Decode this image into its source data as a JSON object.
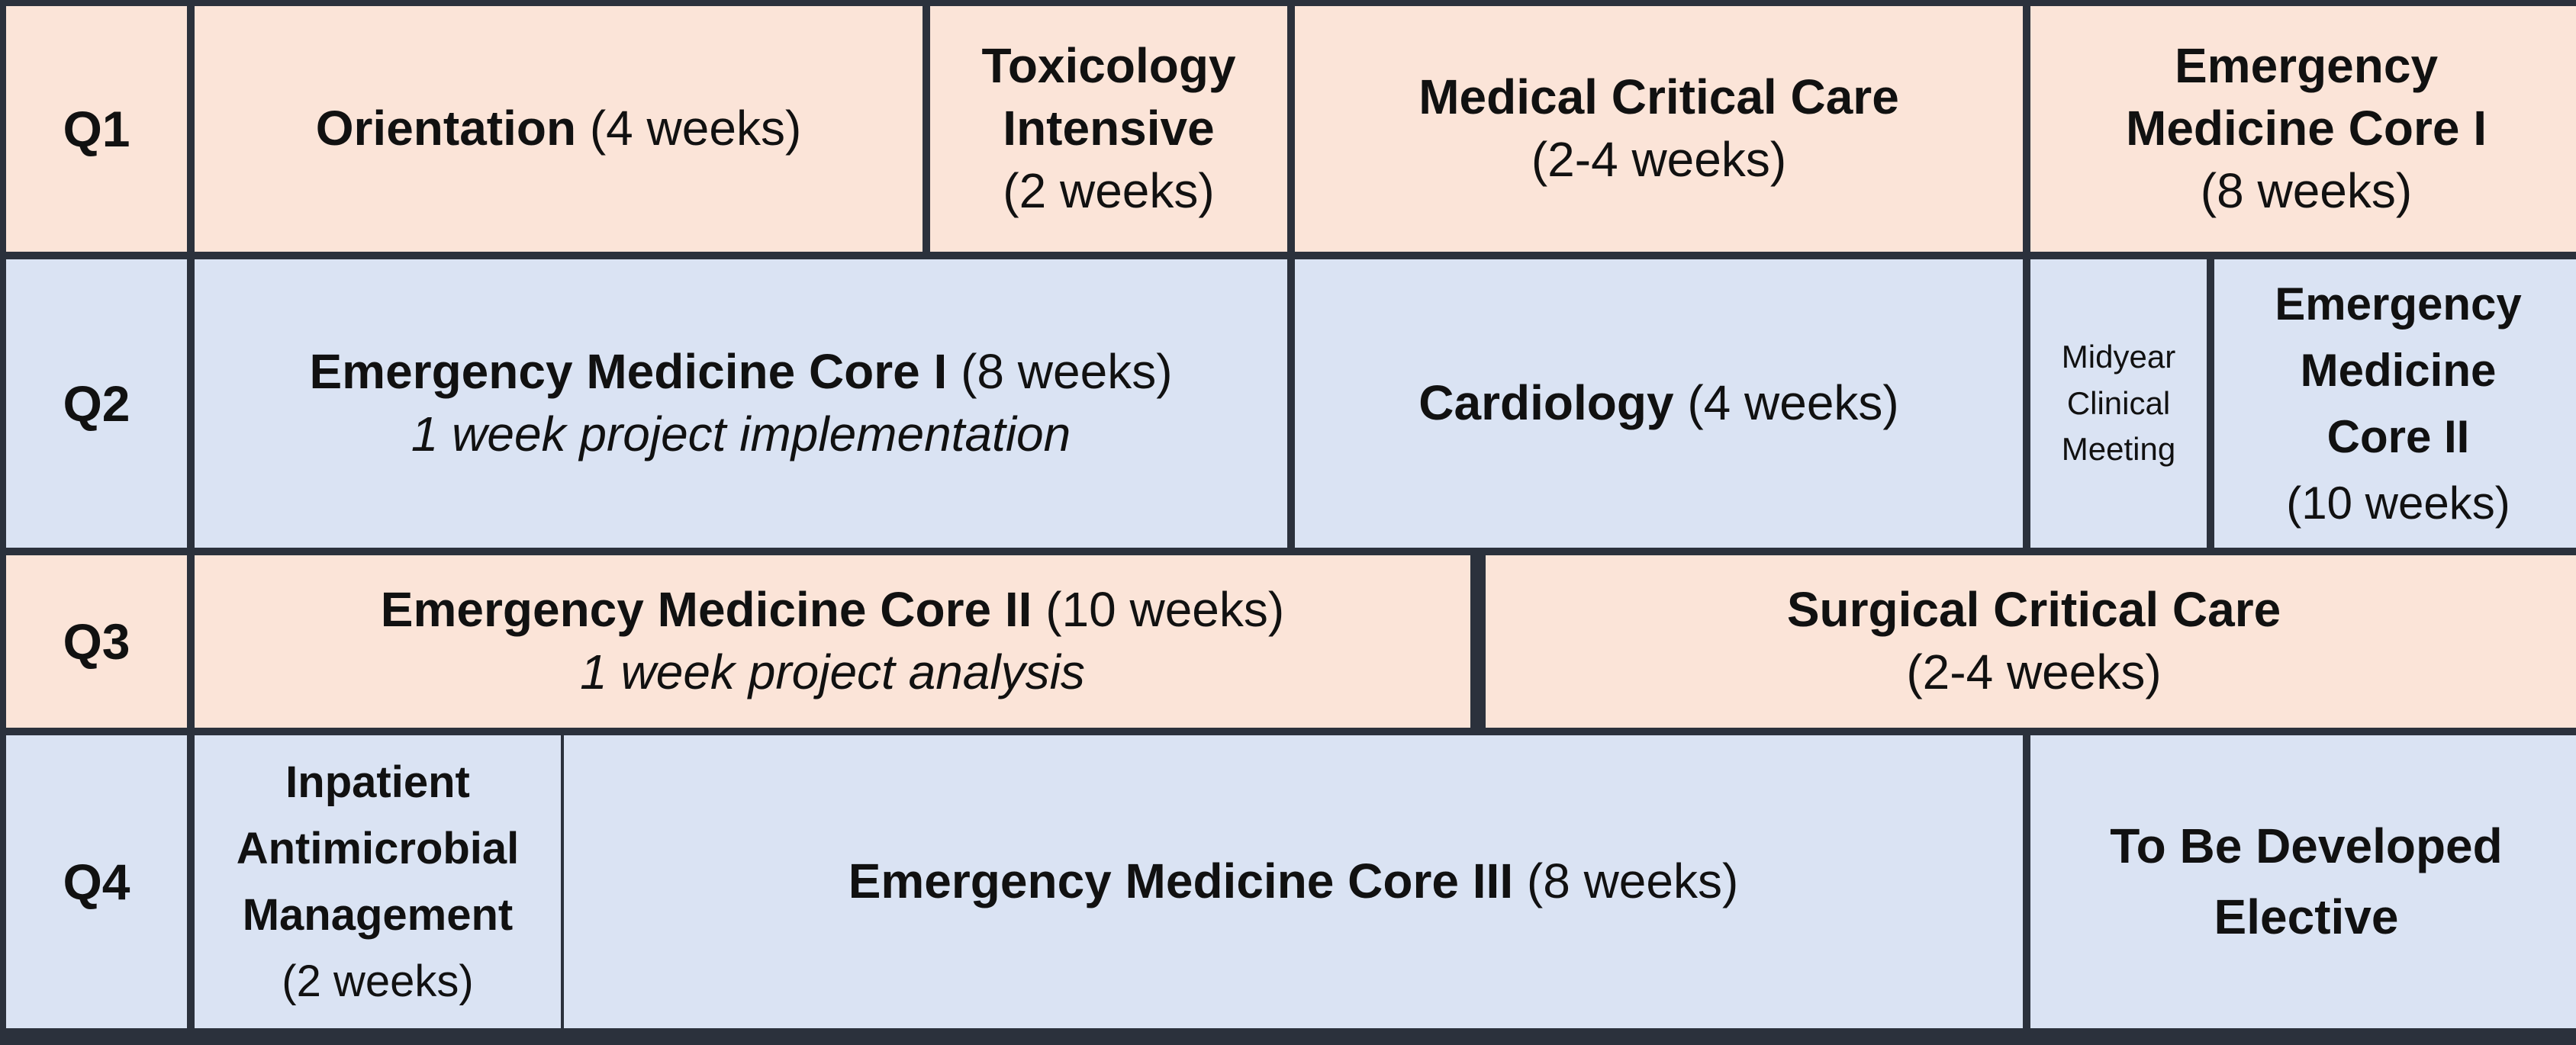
{
  "rows": [
    {
      "quarter": "Q1",
      "cells": [
        {
          "title": "Orientation",
          "detail": "(4 weeks)"
        },
        {
          "title": "Toxicology Intensive",
          "detail": "(2 weeks)"
        },
        {
          "title": "Medical Critical Care",
          "detail": "(2-4 weeks)"
        },
        {
          "title": "Emergency Medicine Core I",
          "detail": "(8 weeks)"
        }
      ]
    },
    {
      "quarter": "Q2",
      "cells": [
        {
          "title": "Emergency Medicine Core I",
          "detail": "(8 weeks)",
          "note": "1 week project implementation"
        },
        {
          "title": "Cardiology",
          "detail": "(4 weeks)"
        },
        {
          "title": "Midyear Clinical Meeting"
        },
        {
          "title": "Emergency Medicine Core II",
          "detail": "(10 weeks)"
        }
      ]
    },
    {
      "quarter": "Q3",
      "cells": [
        {
          "title": "Emergency Medicine Core II",
          "detail": "(10 weeks)",
          "note": "1 week project analysis"
        },
        {
          "title": "Surgical Critical Care",
          "detail": "(2-4 weeks)"
        }
      ]
    },
    {
      "quarter": "Q4",
      "cells": [
        {
          "title": "Inpatient Antimicrobial Management",
          "detail": "(2 weeks)"
        },
        {
          "title": "Emergency Medicine Core III",
          "detail": "(8 weeks)"
        },
        {
          "title": "To Be Developed Elective"
        }
      ]
    }
  ],
  "colors": {
    "odd_row": "#fbe4d8",
    "even_row": "#dae3f3",
    "border": "#2b313c"
  }
}
